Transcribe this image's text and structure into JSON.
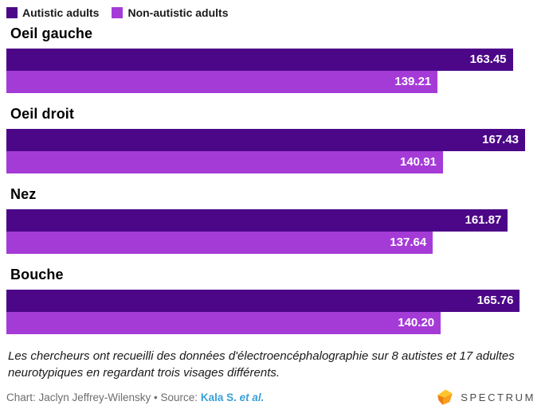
{
  "chart_data": {
    "type": "bar",
    "orientation": "horizontal",
    "title": "",
    "categories": [
      "Oeil gauche",
      "Oeil droit",
      "Nez",
      "Bouche"
    ],
    "series": [
      {
        "name": "Autistic adults",
        "color": "#4c0788",
        "values": [
          163.45,
          167.43,
          161.87,
          165.76
        ],
        "labels": [
          "163.45",
          "167.43",
          "161.87",
          "165.76"
        ]
      },
      {
        "name": "Non-autistic adults",
        "color": "#a53bd7",
        "values": [
          139.21,
          140.91,
          137.64,
          140.2
        ],
        "labels": [
          "139.21",
          "140.91",
          "137.64",
          "140.20"
        ]
      }
    ],
    "xlim": [
      0,
      171.8
    ],
    "grid": false,
    "legend_position": "top-left",
    "value_label_position": "inside-end"
  },
  "caption": {
    "text": "Les chercheurs ont recueilli des données d'électroencéphalographie sur 8 autistes et 17 adultes neurotypiques en regardant trois visages différents."
  },
  "credit": {
    "text": "Chart: Jaclyn Jeffrey-Wilensky • Source:",
    "source_link": "Kala S.",
    "source_link_suffix": "et al."
  },
  "logo": {
    "text": "SPECTRUM",
    "icon": "spectrum-gem-icon"
  },
  "colors": {
    "autistic_bar": "#4c0788",
    "non_autistic_bar": "#a53bd7",
    "source_link": "#3aa0d8",
    "credit_text": "#6d6d6d",
    "logo_text": "#4d4d4d",
    "logo_gem_top": "#fdc62c",
    "logo_gem_mid": "#f9a01b",
    "logo_gem_dark": "#ef7c10"
  }
}
